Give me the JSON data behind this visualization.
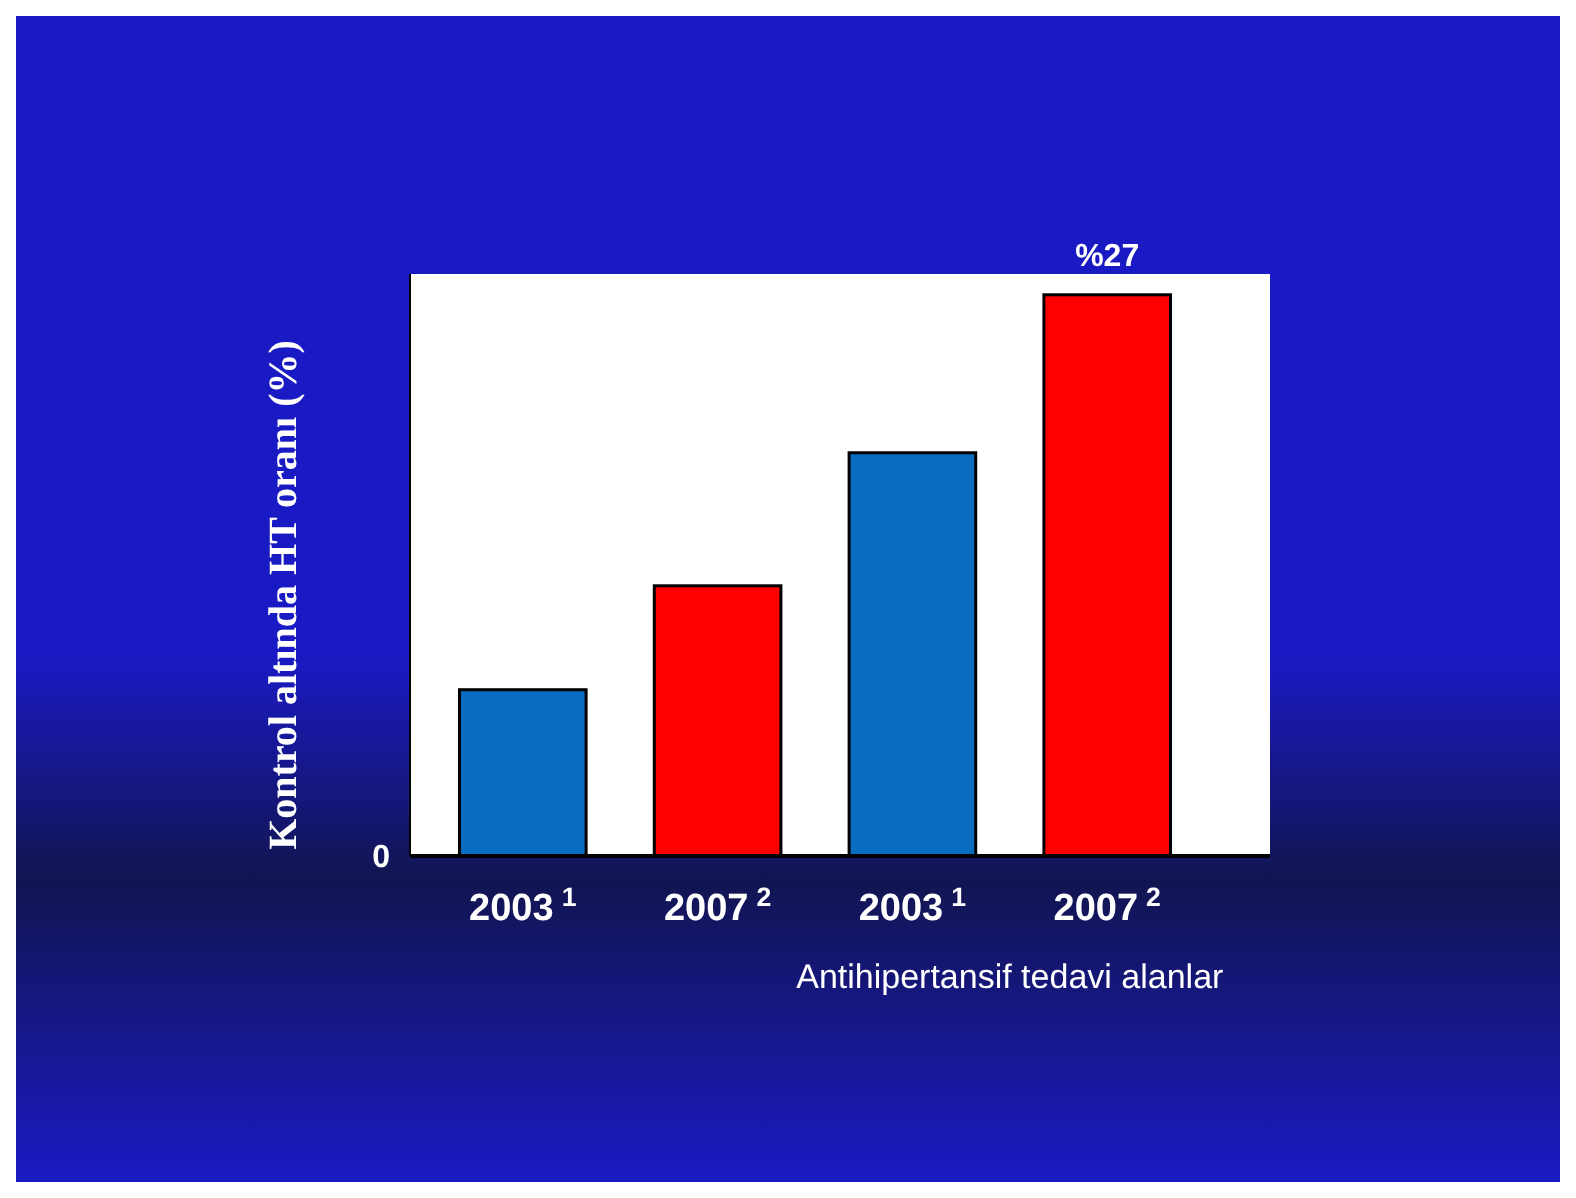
{
  "chart_data": {
    "type": "bar",
    "ylabel": "Kontrol altında HT oranı (%)",
    "categories": [
      "2003$^{1}$",
      "2007$^{2}$",
      "2003$^{1}$",
      "2007$^{2}$"
    ],
    "values": [
      8,
      13,
      19.4,
      27
    ],
    "ylim": [
      0,
      28
    ],
    "colors": [
      "#0a6cc0",
      "#ff0000",
      "#0a6cc0",
      "#ff0000"
    ],
    "value_labels": [
      null,
      null,
      null,
      "%27"
    ],
    "annotations": [
      "0",
      "Antihipertansif tedavi alanlar"
    ]
  }
}
